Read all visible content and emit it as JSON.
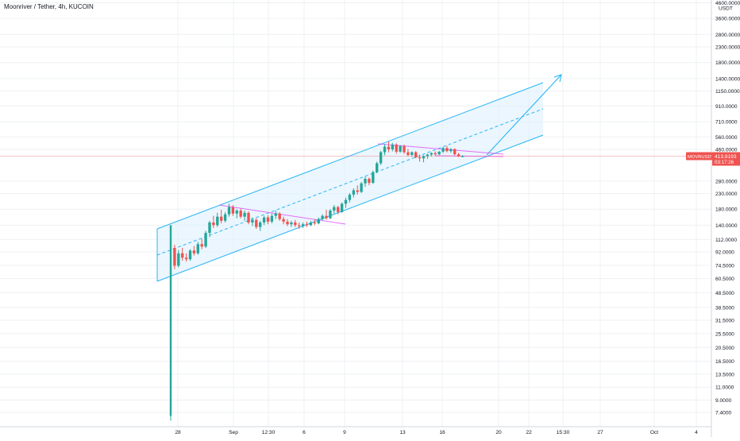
{
  "header": {
    "title": "Moonriver / Tether, 4h, KUCOIN"
  },
  "price_axis": {
    "currency": "USDT",
    "tick_labels": [
      "4600.0000",
      "3600.0000",
      "2800.0000",
      "2300.0000",
      "1800.0000",
      "1400.0000",
      "1150.0000",
      "910.0000",
      "710.0000",
      "560.0000",
      "460.0000",
      "280.0000",
      "230.0000",
      "180.0000",
      "140.0000",
      "112.0000",
      "92.0000",
      "74.5000",
      "60.5000",
      "48.5000",
      "38.5000",
      "31.5000",
      "25.5000",
      "20.5000",
      "16.5000",
      "13.5000",
      "11.0000",
      "9.0000",
      "7.4000"
    ]
  },
  "price_tag": {
    "symbol": "MOVRUSDT",
    "price": "413.8193",
    "countdown": "03:17:26",
    "color": "#ef5350"
  },
  "time_axis": {
    "tick_labels": [
      "28",
      "Sep",
      "12:30",
      "6",
      "9",
      "13",
      "16",
      "20",
      "22",
      "15:30",
      "27",
      "Oct",
      "4"
    ]
  },
  "colors": {
    "up": "#26a69a",
    "down": "#ef5350",
    "channel": "#29b6f6",
    "channel_fill": "#e3f2fd",
    "triangle": "#e040fb",
    "grid": "#eef0f3",
    "axis_text": "#131722"
  },
  "chart_data": {
    "type": "candlestick",
    "title": "Moonriver / Tether, 4h, KUCOIN",
    "y_scale": "log",
    "y_unit": "USDT",
    "last_price": 413.8193,
    "candles": [
      {
        "o": 7.0,
        "h": 140.0,
        "l": 6.5,
        "c": 140.0
      },
      {
        "o": 98,
        "h": 103,
        "l": 70,
        "c": 74
      },
      {
        "o": 74,
        "h": 95,
        "l": 72,
        "c": 90
      },
      {
        "o": 90,
        "h": 98,
        "l": 80,
        "c": 84
      },
      {
        "o": 84,
        "h": 90,
        "l": 79,
        "c": 82
      },
      {
        "o": 82,
        "h": 96,
        "l": 80,
        "c": 94
      },
      {
        "o": 94,
        "h": 101,
        "l": 87,
        "c": 90
      },
      {
        "o": 90,
        "h": 108,
        "l": 88,
        "c": 104
      },
      {
        "o": 104,
        "h": 113,
        "l": 96,
        "c": 100
      },
      {
        "o": 100,
        "h": 128,
        "l": 98,
        "c": 124
      },
      {
        "o": 124,
        "h": 150,
        "l": 116,
        "c": 146
      },
      {
        "o": 146,
        "h": 162,
        "l": 134,
        "c": 140
      },
      {
        "o": 140,
        "h": 170,
        "l": 136,
        "c": 160
      },
      {
        "o": 160,
        "h": 178,
        "l": 144,
        "c": 150
      },
      {
        "o": 150,
        "h": 172,
        "l": 146,
        "c": 166
      },
      {
        "o": 166,
        "h": 196,
        "l": 160,
        "c": 186
      },
      {
        "o": 186,
        "h": 192,
        "l": 162,
        "c": 168
      },
      {
        "o": 168,
        "h": 180,
        "l": 156,
        "c": 176
      },
      {
        "o": 176,
        "h": 182,
        "l": 156,
        "c": 160
      },
      {
        "o": 160,
        "h": 176,
        "l": 150,
        "c": 170
      },
      {
        "o": 170,
        "h": 174,
        "l": 142,
        "c": 146
      },
      {
        "o": 146,
        "h": 158,
        "l": 138,
        "c": 152
      },
      {
        "o": 152,
        "h": 156,
        "l": 132,
        "c": 136
      },
      {
        "o": 136,
        "h": 150,
        "l": 128,
        "c": 146
      },
      {
        "o": 146,
        "h": 162,
        "l": 140,
        "c": 158
      },
      {
        "o": 158,
        "h": 164,
        "l": 142,
        "c": 148
      },
      {
        "o": 148,
        "h": 168,
        "l": 144,
        "c": 162
      },
      {
        "o": 162,
        "h": 176,
        "l": 154,
        "c": 168
      },
      {
        "o": 168,
        "h": 172,
        "l": 150,
        "c": 154
      },
      {
        "o": 154,
        "h": 160,
        "l": 142,
        "c": 148
      },
      {
        "o": 148,
        "h": 154,
        "l": 138,
        "c": 142
      },
      {
        "o": 142,
        "h": 150,
        "l": 136,
        "c": 146
      },
      {
        "o": 146,
        "h": 152,
        "l": 136,
        "c": 140
      },
      {
        "o": 140,
        "h": 146,
        "l": 132,
        "c": 138
      },
      {
        "o": 138,
        "h": 146,
        "l": 134,
        "c": 142
      },
      {
        "o": 142,
        "h": 148,
        "l": 136,
        "c": 140
      },
      {
        "o": 140,
        "h": 150,
        "l": 138,
        "c": 146
      },
      {
        "o": 146,
        "h": 154,
        "l": 140,
        "c": 144
      },
      {
        "o": 144,
        "h": 158,
        "l": 142,
        "c": 154
      },
      {
        "o": 154,
        "h": 166,
        "l": 150,
        "c": 162
      },
      {
        "o": 162,
        "h": 178,
        "l": 152,
        "c": 156
      },
      {
        "o": 156,
        "h": 180,
        "l": 154,
        "c": 176
      },
      {
        "o": 176,
        "h": 192,
        "l": 168,
        "c": 186
      },
      {
        "o": 186,
        "h": 190,
        "l": 166,
        "c": 172
      },
      {
        "o": 172,
        "h": 200,
        "l": 170,
        "c": 196
      },
      {
        "o": 196,
        "h": 216,
        "l": 184,
        "c": 208
      },
      {
        "o": 208,
        "h": 232,
        "l": 200,
        "c": 226
      },
      {
        "o": 226,
        "h": 250,
        "l": 216,
        "c": 242
      },
      {
        "o": 242,
        "h": 262,
        "l": 226,
        "c": 236
      },
      {
        "o": 236,
        "h": 276,
        "l": 232,
        "c": 270
      },
      {
        "o": 270,
        "h": 300,
        "l": 256,
        "c": 290
      },
      {
        "o": 290,
        "h": 296,
        "l": 262,
        "c": 272
      },
      {
        "o": 272,
        "h": 330,
        "l": 268,
        "c": 322
      },
      {
        "o": 322,
        "h": 380,
        "l": 316,
        "c": 370
      },
      {
        "o": 370,
        "h": 450,
        "l": 360,
        "c": 440
      },
      {
        "o": 440,
        "h": 500,
        "l": 420,
        "c": 480
      },
      {
        "o": 480,
        "h": 520,
        "l": 440,
        "c": 460
      },
      {
        "o": 460,
        "h": 510,
        "l": 446,
        "c": 496
      },
      {
        "o": 496,
        "h": 506,
        "l": 430,
        "c": 444
      },
      {
        "o": 444,
        "h": 492,
        "l": 436,
        "c": 484
      },
      {
        "o": 484,
        "h": 496,
        "l": 430,
        "c": 440
      },
      {
        "o": 440,
        "h": 464,
        "l": 412,
        "c": 422
      },
      {
        "o": 422,
        "h": 446,
        "l": 410,
        "c": 440
      },
      {
        "o": 440,
        "h": 448,
        "l": 400,
        "c": 406
      },
      {
        "o": 406,
        "h": 424,
        "l": 380,
        "c": 400
      },
      {
        "o": 400,
        "h": 420,
        "l": 376,
        "c": 414
      },
      {
        "o": 414,
        "h": 430,
        "l": 396,
        "c": 424
      },
      {
        "o": 424,
        "h": 440,
        "l": 412,
        "c": 434
      },
      {
        "o": 434,
        "h": 446,
        "l": 418,
        "c": 426
      },
      {
        "o": 426,
        "h": 448,
        "l": 420,
        "c": 444
      },
      {
        "o": 444,
        "h": 476,
        "l": 436,
        "c": 470
      },
      {
        "o": 470,
        "h": 486,
        "l": 440,
        "c": 448
      },
      {
        "o": 448,
        "h": 470,
        "l": 436,
        "c": 462
      },
      {
        "o": 462,
        "h": 468,
        "l": 420,
        "c": 426
      },
      {
        "o": 426,
        "h": 436,
        "l": 408,
        "c": 412
      },
      {
        "o": 412,
        "h": 420,
        "l": 406,
        "c": 414
      }
    ]
  }
}
